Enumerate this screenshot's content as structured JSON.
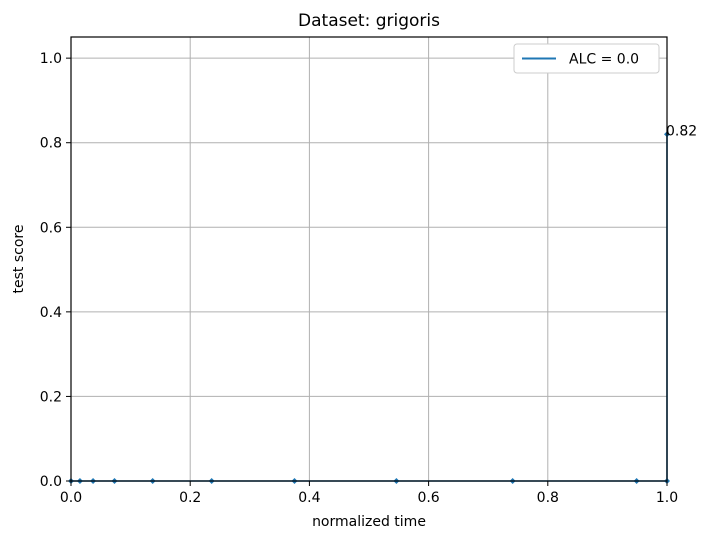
{
  "chart_data": {
    "type": "line",
    "title": "Dataset: grigoris",
    "xlabel": "normalized time",
    "ylabel": "test score",
    "xlim": [
      0.0,
      1.0
    ],
    "ylim": [
      0.0,
      1.05
    ],
    "xticks": [
      "0.0",
      "0.2",
      "0.4",
      "0.6",
      "0.8",
      "1.0"
    ],
    "yticks": [
      "0.0",
      "0.2",
      "0.4",
      "0.6",
      "0.8",
      "1.0"
    ],
    "grid": true,
    "legend_placement": "upper-right",
    "series": [
      {
        "name": "ALC = 0.0",
        "color": "#1f77b4",
        "x": [
          0.0,
          0.015,
          0.037,
          0.073,
          0.137,
          0.236,
          0.375,
          0.546,
          0.741,
          0.949,
          1.0,
          1.0
        ],
        "y": [
          0.0,
          0.0,
          0.0,
          0.0,
          0.0,
          0.0,
          0.0,
          0.0,
          0.0,
          0.0,
          0.0,
          0.82
        ]
      }
    ],
    "annotations": [
      {
        "text": "0.82",
        "x": 1.0,
        "y": 0.82
      }
    ]
  }
}
